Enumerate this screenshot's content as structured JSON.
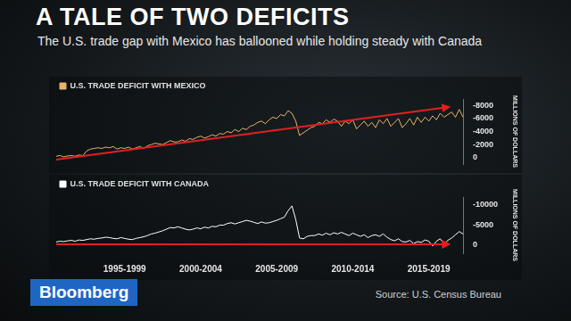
{
  "title": "A TALE OF TWO DEFICITS",
  "subtitle": "The U.S. trade gap with Mexico has ballooned while holding steady with Canada",
  "logo": "Bloomberg",
  "source": "Source: U.S. Census Bureau",
  "chart_data": [
    {
      "type": "line",
      "categories": [
        null,
        null,
        null,
        null,
        null,
        null,
        null,
        null,
        null,
        null,
        null,
        null,
        null,
        null,
        null,
        null,
        null,
        null,
        "1995-1999",
        null,
        null,
        null,
        null,
        null,
        null,
        null,
        null,
        null,
        null,
        null,
        null,
        null,
        null,
        null,
        null,
        null,
        null,
        null,
        "2000-2004",
        null,
        null,
        null,
        null,
        null,
        null,
        null,
        null,
        null,
        null,
        null,
        null,
        null,
        null,
        null,
        null,
        null,
        null,
        null,
        "2005-2009",
        null,
        null,
        null,
        null,
        null,
        null,
        null,
        null,
        null,
        null,
        null,
        null,
        null,
        null,
        null,
        null,
        null,
        null,
        null,
        "2010-2014",
        null,
        null,
        null,
        null,
        null,
        null,
        null,
        null,
        null,
        null,
        null,
        null,
        null,
        null,
        null,
        null,
        null,
        null,
        null,
        "2015-2019",
        null,
        null,
        null,
        null,
        null,
        null,
        null,
        null,
        null
      ],
      "series": [
        {
          "name": "U.S. TRADE DEFICIT WITH MEXICO",
          "color": "#e8b46a",
          "values": [
            -200,
            -300,
            -100,
            -250,
            -300,
            -200,
            -400,
            -300,
            -1000,
            -1300,
            -1400,
            -1500,
            -1400,
            -1600,
            -1500,
            -1700,
            -1300,
            -1500,
            -1400,
            -1600,
            -1300,
            -1500,
            -1700,
            -1400,
            -1800,
            -2000,
            -2200,
            -2100,
            -2000,
            -2300,
            -2600,
            -2400,
            -2400,
            -2700,
            -2500,
            -2900,
            -2800,
            -3100,
            -3300,
            -3000,
            -3200,
            -3500,
            -3300,
            -3700,
            -3600,
            -4000,
            -3800,
            -4300,
            -4000,
            -4500,
            -4300,
            -4800,
            -5000,
            -5400,
            -5600,
            -5200,
            -5800,
            -6200,
            -6000,
            -6600,
            -6400,
            -7200,
            -6800,
            -5600,
            -3400,
            -3800,
            -4200,
            -4600,
            -4800,
            -5400,
            -5200,
            -5800,
            -5400,
            -5900,
            -5600,
            -4800,
            -5600,
            -5200,
            -5800,
            -4400,
            -5000,
            -5600,
            -4800,
            -5400,
            -4600,
            -5800,
            -5200,
            -6000,
            -4800,
            -5400,
            -6000,
            -4600,
            -5200,
            -6000,
            -5000,
            -6200,
            -5400,
            -6200,
            -5600,
            -6400,
            -5800,
            -6800,
            -6200,
            -6600,
            -7000,
            -6200,
            -7400,
            -6200
          ]
        }
      ],
      "y_label": "MILLIONS OF DOLLARS",
      "ylim": [
        1000,
        -9000
      ],
      "yticks": [
        -8000,
        -6000,
        -4000,
        -2000,
        0
      ],
      "grid": false,
      "legend": "upper left",
      "tick_labels": "y"
    },
    {
      "type": "line",
      "categories": [
        null,
        null,
        null,
        null,
        null,
        null,
        null,
        null,
        null,
        null,
        null,
        null,
        null,
        null,
        null,
        null,
        null,
        null,
        "1995-1999",
        null,
        null,
        null,
        null,
        null,
        null,
        null,
        null,
        null,
        null,
        null,
        null,
        null,
        null,
        null,
        null,
        null,
        null,
        null,
        "2000-2004",
        null,
        null,
        null,
        null,
        null,
        null,
        null,
        null,
        null,
        null,
        null,
        null,
        null,
        null,
        null,
        null,
        null,
        null,
        null,
        "2005-2009",
        null,
        null,
        null,
        null,
        null,
        null,
        null,
        null,
        null,
        null,
        null,
        null,
        null,
        null,
        null,
        null,
        null,
        null,
        null,
        "2010-2014",
        null,
        null,
        null,
        null,
        null,
        null,
        null,
        null,
        null,
        null,
        null,
        null,
        null,
        null,
        null,
        null,
        null,
        null,
        null,
        "2015-2019",
        null,
        null,
        null,
        null,
        null,
        null,
        null,
        null,
        null
      ],
      "series": [
        {
          "name": "U.S. TRADE DEFICIT WITH CANADA",
          "color": "#ffffff",
          "values": [
            -800,
            -1000,
            -900,
            -1100,
            -1200,
            -1000,
            -1300,
            -1200,
            -1400,
            -1600,
            -1500,
            -1700,
            -1800,
            -2000,
            -1900,
            -1700,
            -1600,
            -1900,
            -1700,
            -1500,
            -1400,
            -1700,
            -1900,
            -2100,
            -2400,
            -2800,
            -3000,
            -3300,
            -3600,
            -4000,
            -4400,
            -4300,
            -4600,
            -4300,
            -4000,
            -3800,
            -4000,
            -4300,
            -4100,
            -4500,
            -4300,
            -4700,
            -4600,
            -5000,
            -5000,
            -5400,
            -5600,
            -5300,
            -5600,
            -5900,
            -6200,
            -6000,
            -5700,
            -5400,
            -5800,
            -5500,
            -5600,
            -5900,
            -6200,
            -6600,
            -7000,
            -8600,
            -9800,
            -6400,
            -1800,
            -1600,
            -2200,
            -2400,
            -2400,
            -2800,
            -2500,
            -3000,
            -2600,
            -3100,
            -2800,
            -3200,
            -2800,
            -2400,
            -3000,
            -2600,
            -2200,
            -2600,
            -1900,
            -2400,
            -2600,
            -2200,
            -2800,
            -2000,
            -1400,
            -1100,
            -1600,
            -900,
            -800,
            -1200,
            -400,
            -900,
            -700,
            -1300,
            -1000,
            200,
            -1000,
            -1600,
            -300,
            -1200,
            -1800,
            -2600,
            -3400,
            -2800
          ]
        }
      ],
      "y_label": "MILLIONS OF DOLLARS",
      "ylim": [
        2000,
        -12000
      ],
      "yticks": [
        -10000,
        -5000,
        0
      ],
      "grid": false,
      "legend": "upper left",
      "tick_labels": true
    }
  ]
}
